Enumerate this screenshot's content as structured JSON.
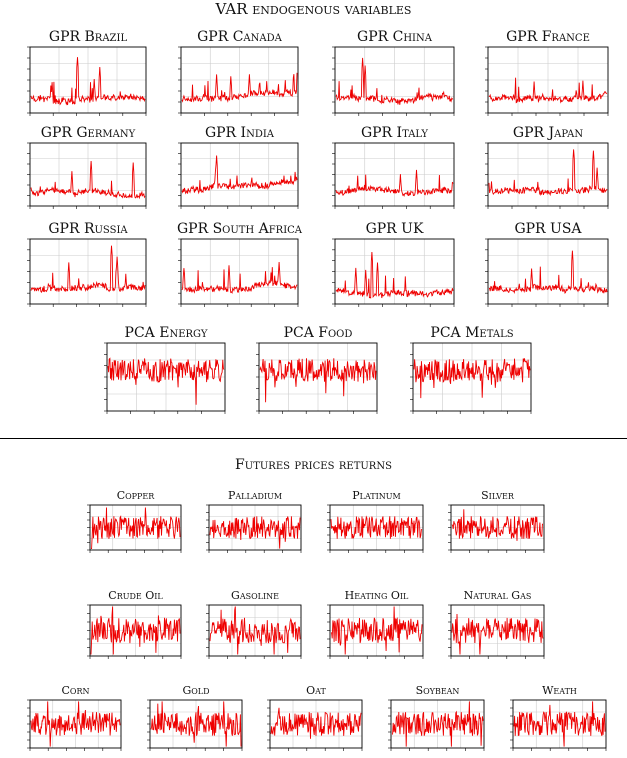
{
  "sections": {
    "var_title": "VAR endogenous variables",
    "futures_title": "Futures prices returns"
  },
  "colors": {
    "series": "#ee0000",
    "grid": "#cccccc",
    "frame": "#000000"
  },
  "chart_data": [
    {
      "id": "gpr_brazil",
      "type": "line",
      "title": "GPR Brazil",
      "style": "gpr"
    },
    {
      "id": "gpr_canada",
      "type": "line",
      "title": "GPR Canada",
      "style": "gpr"
    },
    {
      "id": "gpr_china",
      "type": "line",
      "title": "GPR China",
      "style": "gpr"
    },
    {
      "id": "gpr_france",
      "type": "line",
      "title": "GPR France",
      "style": "gpr"
    },
    {
      "id": "gpr_germany",
      "type": "line",
      "title": "GPR Germany",
      "style": "gpr"
    },
    {
      "id": "gpr_india",
      "type": "line",
      "title": "GPR India",
      "style": "gpr"
    },
    {
      "id": "gpr_italy",
      "type": "line",
      "title": "GPR Italy",
      "style": "gpr"
    },
    {
      "id": "gpr_japan",
      "type": "line",
      "title": "GPR Japan",
      "style": "gpr"
    },
    {
      "id": "gpr_russia",
      "type": "line",
      "title": "GPR Russia",
      "style": "gpr"
    },
    {
      "id": "gpr_south_africa",
      "type": "line",
      "title": "GPR South Africa",
      "style": "gpr"
    },
    {
      "id": "gpr_uk",
      "type": "line",
      "title": "GPR UK",
      "style": "gpr"
    },
    {
      "id": "gpr_usa",
      "type": "line",
      "title": "GPR USA",
      "style": "gpr"
    },
    {
      "id": "pca_energy",
      "type": "line",
      "title": "PCA Energy",
      "style": "noise"
    },
    {
      "id": "pca_food",
      "type": "line",
      "title": "PCA Food",
      "style": "noise"
    },
    {
      "id": "pca_metals",
      "type": "line",
      "title": "PCA Metals",
      "style": "noise"
    },
    {
      "id": "copper",
      "type": "line",
      "title": "Copper",
      "style": "returns"
    },
    {
      "id": "palladium",
      "type": "line",
      "title": "Palladium",
      "style": "returns"
    },
    {
      "id": "platinum",
      "type": "line",
      "title": "Platinum",
      "style": "returns"
    },
    {
      "id": "silver",
      "type": "line",
      "title": "Silver",
      "style": "returns"
    },
    {
      "id": "crude_oil",
      "type": "line",
      "title": "Crude Oil",
      "style": "returns"
    },
    {
      "id": "gasoline",
      "type": "line",
      "title": "Gasoline",
      "style": "returns"
    },
    {
      "id": "heating_oil",
      "type": "line",
      "title": "Heating Oil",
      "style": "returns"
    },
    {
      "id": "natural_gas",
      "type": "line",
      "title": "Natural Gas",
      "style": "returns"
    },
    {
      "id": "corn",
      "type": "line",
      "title": "Corn",
      "style": "returns"
    },
    {
      "id": "gold",
      "type": "line",
      "title": "Gold",
      "style": "returns"
    },
    {
      "id": "oat",
      "type": "line",
      "title": "Oat",
      "style": "returns"
    },
    {
      "id": "soybean",
      "type": "line",
      "title": "Soybean",
      "style": "returns"
    },
    {
      "id": "weath",
      "type": "line",
      "title": "Weath",
      "style": "returns"
    }
  ]
}
